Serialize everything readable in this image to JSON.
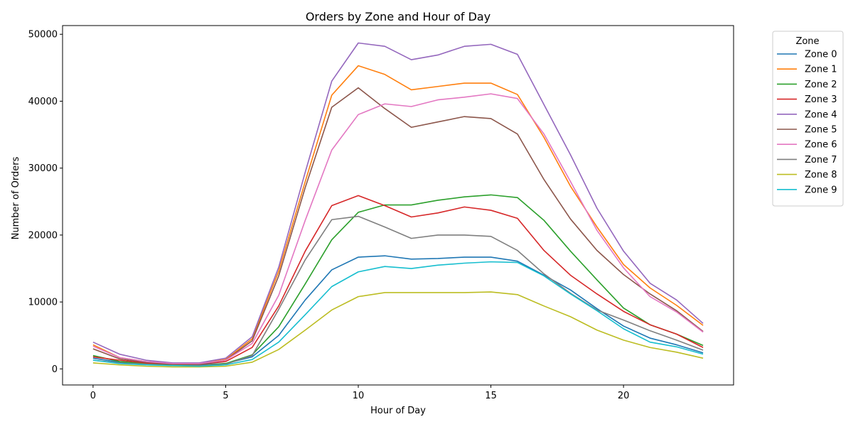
{
  "chart_data": {
    "type": "line",
    "title": "Orders by Zone and Hour of Day",
    "xlabel": "Hour of Day",
    "ylabel": "Number of Orders",
    "xlim": [
      -1.15,
      24.15
    ],
    "ylim": [
      -2400,
      51300
    ],
    "xticks": [
      0,
      5,
      10,
      15,
      20
    ],
    "yticks": [
      0,
      10000,
      20000,
      30000,
      40000,
      50000
    ],
    "grid": false,
    "legend": {
      "title": "Zone",
      "placement": "outside-right"
    },
    "x": [
      0,
      1,
      2,
      3,
      4,
      5,
      6,
      7,
      8,
      9,
      10,
      11,
      12,
      13,
      14,
      15,
      16,
      17,
      18,
      19,
      20,
      21,
      22,
      23
    ],
    "series": [
      {
        "name": "Zone 0",
        "color": "#1f77b4",
        "values": [
          1600,
          1000,
          700,
          600,
          600,
          800,
          1800,
          5000,
          10300,
          14800,
          16700,
          16900,
          16400,
          16500,
          16700,
          16700,
          16100,
          14000,
          11800,
          9000,
          6400,
          4600,
          3600,
          2400
        ]
      },
      {
        "name": "Zone 1",
        "color": "#ff7f0e",
        "values": [
          3600,
          1700,
          1100,
          800,
          800,
          1400,
          4500,
          14600,
          28000,
          40900,
          45300,
          44000,
          41700,
          42200,
          42700,
          42700,
          41000,
          34600,
          27300,
          21200,
          15600,
          12100,
          9500,
          6500
        ]
      },
      {
        "name": "Zone 2",
        "color": "#2ca02c",
        "values": [
          2000,
          1100,
          800,
          600,
          500,
          800,
          2100,
          6300,
          12700,
          19300,
          23400,
          24500,
          24500,
          25200,
          25700,
          26000,
          25600,
          22200,
          17600,
          13300,
          9100,
          6600,
          5200,
          3500
        ]
      },
      {
        "name": "Zone 3",
        "color": "#d62728",
        "values": [
          1800,
          1300,
          900,
          700,
          700,
          1100,
          3200,
          9400,
          17600,
          24400,
          25900,
          24400,
          22700,
          23300,
          24200,
          23700,
          22500,
          17700,
          14000,
          11200,
          8600,
          6600,
          5200,
          3200
        ]
      },
      {
        "name": "Zone 4",
        "color": "#9467bd",
        "values": [
          4000,
          2200,
          1300,
          900,
          900,
          1600,
          4800,
          15200,
          29400,
          43000,
          48700,
          48200,
          46200,
          46900,
          48200,
          48500,
          47000,
          39500,
          32000,
          24000,
          17600,
          12800,
          10300,
          6800
        ]
      },
      {
        "name": "Zone 5",
        "color": "#8c564b",
        "values": [
          3000,
          1500,
          1000,
          700,
          700,
          1300,
          4200,
          13900,
          27100,
          39100,
          42000,
          38900,
          36100,
          36900,
          37700,
          37400,
          35100,
          28300,
          22400,
          17700,
          14100,
          11200,
          8700,
          5600
        ]
      },
      {
        "name": "Zone 6",
        "color": "#e377c2",
        "values": [
          3400,
          1700,
          1100,
          800,
          800,
          1300,
          3800,
          11000,
          22200,
          32700,
          38000,
          39600,
          39200,
          40200,
          40600,
          41100,
          40400,
          35100,
          28000,
          20700,
          15100,
          10800,
          8500,
          5500
        ]
      },
      {
        "name": "Zone 7",
        "color": "#7f7f7f",
        "values": [
          1300,
          900,
          700,
          500,
          500,
          700,
          2000,
          8900,
          16300,
          22300,
          22800,
          21200,
          19500,
          20000,
          20000,
          19800,
          17700,
          14200,
          11300,
          8800,
          7300,
          5700,
          4300,
          2800
        ]
      },
      {
        "name": "Zone 8",
        "color": "#bcbd22",
        "values": [
          900,
          600,
          400,
          300,
          300,
          400,
          1000,
          2900,
          5800,
          8800,
          10800,
          11400,
          11400,
          11400,
          11400,
          11500,
          11100,
          9400,
          7800,
          5800,
          4300,
          3200,
          2500,
          1600
        ]
      },
      {
        "name": "Zone 9",
        "color": "#17becf",
        "values": [
          1300,
          800,
          600,
          500,
          400,
          600,
          1400,
          4000,
          8100,
          12300,
          14500,
          15300,
          15000,
          15500,
          15800,
          16000,
          15900,
          13900,
          11200,
          8700,
          6000,
          4000,
          3300,
          2200
        ]
      }
    ]
  }
}
